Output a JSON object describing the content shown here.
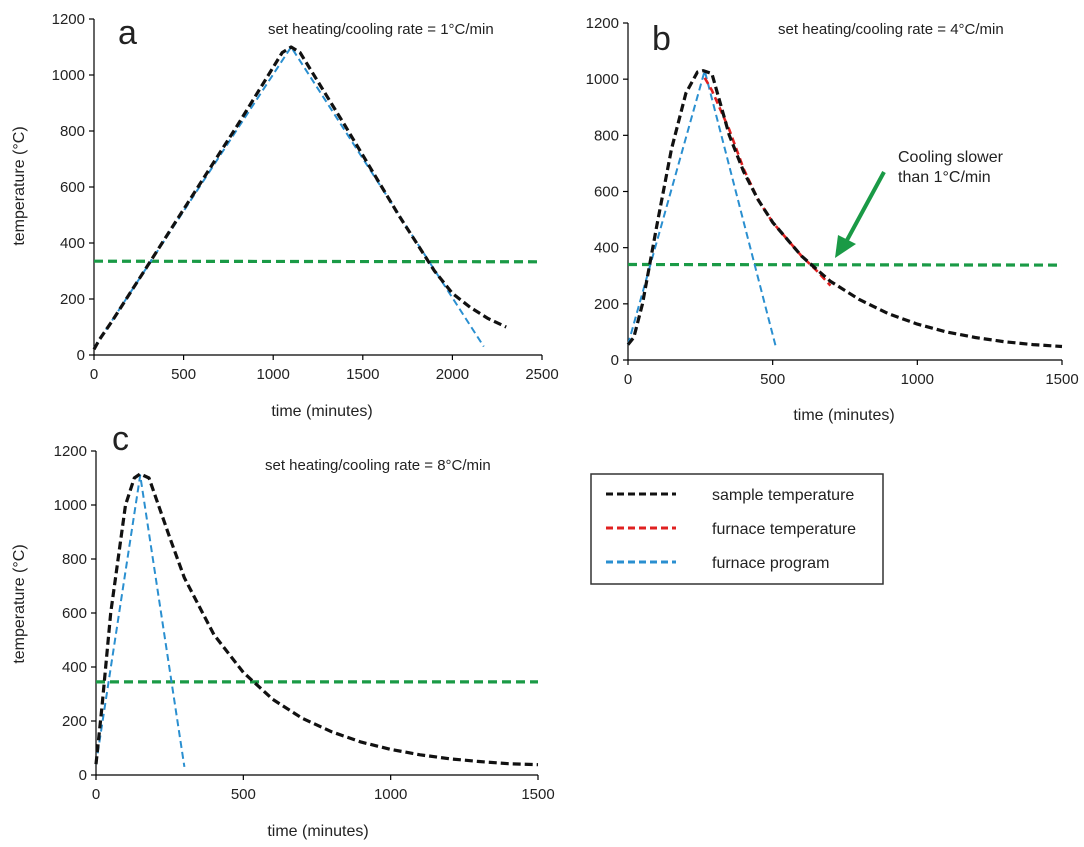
{
  "colors": {
    "sample": "#111111",
    "furnace_temperature": "#e02020",
    "furnace_program": "#2a8fd0",
    "reference_line": "#1a9a46",
    "annotation_arrow": "#1a9a46",
    "axis": "#000000"
  },
  "legend": {
    "items": [
      {
        "label": "sample temperature",
        "color": "#111111"
      },
      {
        "label": "furnace temperature",
        "color": "#e02020"
      },
      {
        "label": "furnace program",
        "color": "#2a8fd0"
      }
    ]
  },
  "chart_data": [
    {
      "panel": "a",
      "type": "line",
      "title": "set heating/cooling rate = 1°C/min",
      "xlabel": "time (minutes)",
      "ylabel": "temperature (°C)",
      "xlim": [
        0,
        2500
      ],
      "ylim": [
        0,
        1200
      ],
      "xticks": [
        0,
        500,
        1000,
        1500,
        2000,
        2500
      ],
      "yticks": [
        0,
        200,
        400,
        600,
        800,
        1000,
        1200
      ],
      "series": [
        {
          "key": "sample",
          "x": [
            0,
            30,
            100,
            300,
            500,
            800,
            1050,
            1100,
            1150,
            1400,
            1700,
            1900,
            2000,
            2100,
            2200,
            2300
          ],
          "y": [
            20,
            55,
            120,
            320,
            520,
            820,
            1080,
            1100,
            1080,
            820,
            500,
            300,
            220,
            170,
            130,
            100
          ]
        },
        {
          "key": "furnace_program",
          "x": [
            0,
            1100,
            2175
          ],
          "y": [
            25,
            1100,
            30
          ]
        },
        {
          "key": "reference_line",
          "x": [
            0,
            2500
          ],
          "y": [
            335,
            333
          ]
        }
      ]
    },
    {
      "panel": "b",
      "type": "line",
      "title": "set heating/cooling rate = 4°C/min",
      "xlabel": "time (minutes)",
      "ylabel": "",
      "xlim": [
        0,
        1500
      ],
      "ylim": [
        0,
        1200
      ],
      "xticks": [
        0,
        500,
        1000,
        1500
      ],
      "yticks": [
        0,
        200,
        400,
        600,
        800,
        1000,
        1200
      ],
      "annotation": "Cooling slower than 1°C/min",
      "series": [
        {
          "key": "sample",
          "x": [
            0,
            20,
            50,
            100,
            150,
            200,
            240,
            260,
            290,
            350,
            400,
            450,
            500,
            600,
            700,
            800,
            900,
            1000,
            1100,
            1200,
            1300,
            1400,
            1500
          ],
          "y": [
            55,
            80,
            200,
            480,
            750,
            950,
            1025,
            1030,
            1020,
            800,
            670,
            570,
            490,
            370,
            280,
            215,
            165,
            128,
            100,
            80,
            65,
            55,
            48
          ]
        },
        {
          "key": "furnace_temperature",
          "x": [
            265,
            290,
            350,
            400,
            450,
            500,
            550,
            600,
            650,
            700
          ],
          "y": [
            1005,
            960,
            820,
            680,
            570,
            490,
            430,
            370,
            320,
            265
          ]
        },
        {
          "key": "furnace_program",
          "x": [
            0,
            265,
            510
          ],
          "y": [
            55,
            1030,
            50
          ]
        },
        {
          "key": "reference_line",
          "x": [
            0,
            1500
          ],
          "y": [
            340,
            338
          ]
        }
      ]
    },
    {
      "panel": "c",
      "type": "line",
      "title": "set heating/cooling rate = 8°C/min",
      "xlabel": "time (minutes)",
      "ylabel": "temperature (°C)",
      "xlim": [
        0,
        1500
      ],
      "ylim": [
        0,
        1200
      ],
      "xticks": [
        0,
        500,
        1000,
        1500
      ],
      "yticks": [
        0,
        200,
        400,
        600,
        800,
        1000,
        1200
      ],
      "series": [
        {
          "key": "sample",
          "x": [
            0,
            20,
            50,
            100,
            130,
            150,
            180,
            250,
            300,
            400,
            500,
            600,
            700,
            800,
            900,
            1000,
            1100,
            1200,
            1300,
            1400,
            1500
          ],
          "y": [
            40,
            250,
            600,
            1000,
            1100,
            1115,
            1100,
            880,
            730,
            520,
            380,
            280,
            210,
            160,
            122,
            95,
            75,
            60,
            50,
            42,
            38
          ]
        },
        {
          "key": "furnace_program",
          "x": [
            0,
            150,
            300
          ],
          "y": [
            40,
            1110,
            30
          ]
        },
        {
          "key": "reference_line",
          "x": [
            0,
            1500
          ],
          "y": [
            345,
            345
          ]
        }
      ]
    }
  ]
}
